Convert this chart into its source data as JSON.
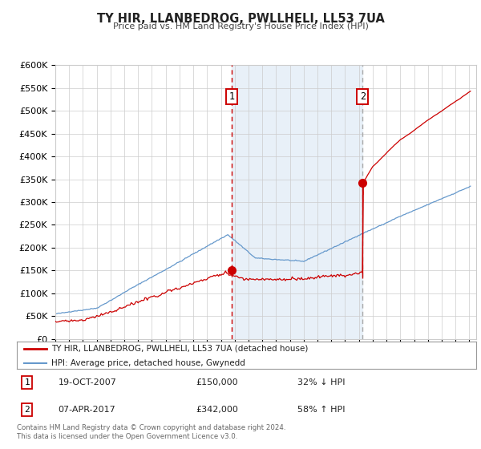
{
  "title": "TY HIR, LLANBEDROG, PWLLHELI, LL53 7UA",
  "subtitle": "Price paid vs. HM Land Registry's House Price Index (HPI)",
  "ylim": [
    0,
    600000
  ],
  "yticks": [
    0,
    50000,
    100000,
    150000,
    200000,
    250000,
    300000,
    350000,
    400000,
    450000,
    500000,
    550000,
    600000
  ],
  "ytick_labels": [
    "£0",
    "£50K",
    "£100K",
    "£150K",
    "£200K",
    "£250K",
    "£300K",
    "£350K",
    "£400K",
    "£450K",
    "£500K",
    "£550K",
    "£600K"
  ],
  "sale1_date": "19-OCT-2007",
  "sale1_price": 150000,
  "sale1_pct": "32% ↓ HPI",
  "sale1_year": 2007.8,
  "sale2_date": "07-APR-2017",
  "sale2_price": 342000,
  "sale2_pct": "58% ↑ HPI",
  "sale2_year": 2017.27,
  "pp_color": "#cc0000",
  "hpi_color": "#6699cc",
  "shade_color": "#e8f0f8",
  "vline1_color": "#cc0000",
  "vline2_color": "#aaaaaa",
  "grid_color": "#cccccc",
  "bg_color": "#ffffff",
  "legend_label1": "TY HIR, LLANBEDROG, PWLLHELI, LL53 7UA (detached house)",
  "legend_label2": "HPI: Average price, detached house, Gwynedd",
  "footer": "Contains HM Land Registry data © Crown copyright and database right 2024.\nThis data is licensed under the Open Government Licence v3.0.",
  "xmin": 1995,
  "xmax": 2025.5
}
